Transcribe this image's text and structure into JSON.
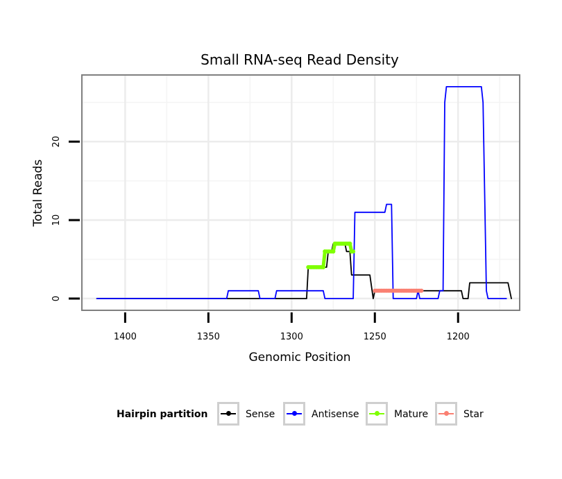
{
  "chart_data": {
    "type": "line",
    "title": "Small RNA-seq Read Density",
    "xlabel": "Genomic Position",
    "ylabel": "Total Reads",
    "xlim": [
      1426,
      1163
    ],
    "ylim": [
      -1.5,
      28.5
    ],
    "x_reversed": true,
    "x_ticks": [
      1400,
      1350,
      1300,
      1250,
      1200
    ],
    "x_tick_labels": [
      "1400",
      "1350",
      "1300",
      "1250",
      "1200"
    ],
    "y_ticks": [
      0,
      10,
      20
    ],
    "y_tick_labels": [
      "0",
      "10",
      "20"
    ],
    "grid": true,
    "legend_position": "bottom",
    "legend_title": "Hairpin partition",
    "series": [
      {
        "name": "Sense",
        "color": "#000000",
        "points": [
          [
            1417,
            0
          ],
          [
            1291,
            0
          ],
          [
            1290,
            4
          ],
          [
            1279,
            4
          ],
          [
            1278,
            6
          ],
          [
            1276,
            6
          ],
          [
            1275,
            7
          ],
          [
            1268,
            7
          ],
          [
            1267,
            6
          ],
          [
            1265,
            6
          ],
          [
            1264,
            3
          ],
          [
            1253,
            3
          ],
          [
            1251,
            0
          ],
          [
            1250,
            1
          ],
          [
            1221,
            1
          ],
          [
            1220,
            1
          ],
          [
            1198,
            1
          ],
          [
            1197,
            0
          ],
          [
            1194,
            0
          ],
          [
            1193,
            2
          ],
          [
            1170,
            2
          ],
          [
            1168,
            0
          ]
        ]
      },
      {
        "name": "Antisense",
        "color": "#0000ff",
        "points": [
          [
            1417,
            0
          ],
          [
            1339,
            0
          ],
          [
            1338,
            1
          ],
          [
            1320,
            1
          ],
          [
            1319,
            0
          ],
          [
            1310,
            0
          ],
          [
            1309,
            1
          ],
          [
            1281,
            1
          ],
          [
            1280,
            0
          ],
          [
            1263,
            0
          ],
          [
            1262,
            11
          ],
          [
            1244,
            11
          ],
          [
            1243,
            12
          ],
          [
            1240,
            12
          ],
          [
            1239,
            0
          ],
          [
            1225,
            0
          ],
          [
            1224,
            1
          ],
          [
            1223,
            0
          ],
          [
            1212,
            0
          ],
          [
            1211,
            1
          ],
          [
            1209,
            1
          ],
          [
            1208,
            25
          ],
          [
            1207,
            27
          ],
          [
            1186,
            27
          ],
          [
            1185,
            25
          ],
          [
            1183,
            1
          ],
          [
            1182,
            0
          ],
          [
            1171,
            0
          ]
        ]
      },
      {
        "name": "Mature",
        "color": "#7fff00",
        "points": [
          [
            1290,
            4
          ],
          [
            1281,
            4
          ],
          [
            1280,
            6
          ],
          [
            1275,
            6
          ],
          [
            1274,
            7
          ],
          [
            1265,
            7
          ],
          [
            1264,
            6
          ],
          [
            1263,
            6
          ]
        ]
      },
      {
        "name": "Star",
        "color": "#fa8072",
        "points": [
          [
            1250,
            1
          ],
          [
            1222,
            1
          ]
        ]
      }
    ]
  }
}
